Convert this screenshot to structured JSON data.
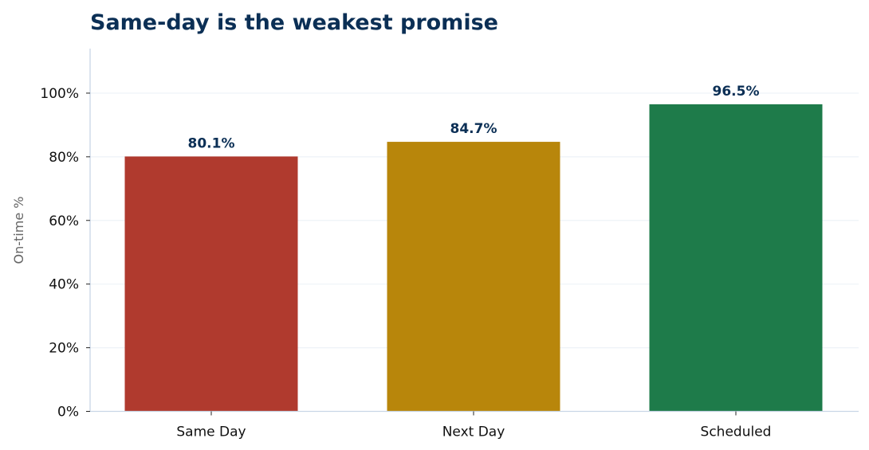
{
  "chart_data": {
    "type": "bar",
    "title": "Same-day is the weakest promise",
    "xlabel": "",
    "ylabel": "On-time %",
    "categories": [
      "Same Day",
      "Next Day",
      "Scheduled"
    ],
    "values": [
      80.1,
      84.7,
      96.5
    ],
    "value_labels": [
      "80.1%",
      "84.7%",
      "96.5%"
    ],
    "bar_colors": [
      "#b03a2e",
      "#b8860b",
      "#1e7b4a"
    ],
    "ylim": [
      0,
      114
    ],
    "yticks": [
      0,
      20,
      40,
      60,
      80,
      100
    ],
    "ytick_labels": [
      "0%",
      "20%",
      "40%",
      "60%",
      "80%",
      "100%"
    ],
    "grid": "horizontal",
    "legend": "none"
  },
  "colors": {
    "title": "#0b2f55",
    "value_label": "#0b2f55",
    "axis": "#c9d6e6",
    "grid": "#eef2f7",
    "ylabel": "#666666"
  }
}
